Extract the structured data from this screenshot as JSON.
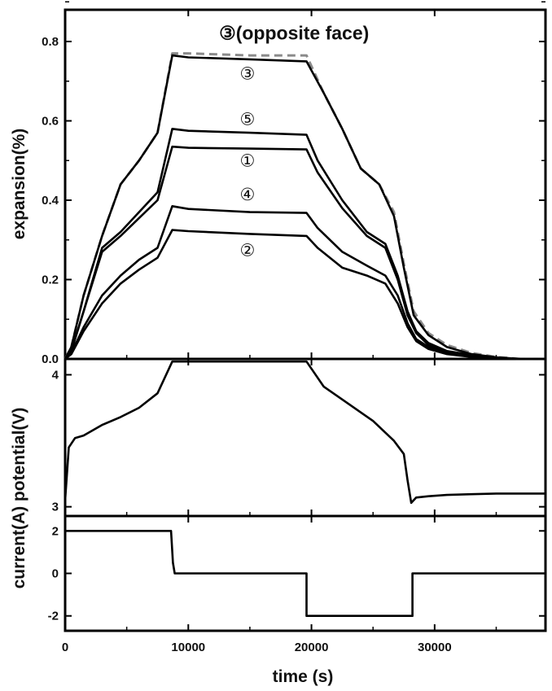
{
  "chart_data": {
    "type": "line",
    "xlabel": "time (s)",
    "x_ticks": [
      "0",
      "10000",
      "20000",
      "30000"
    ],
    "xlim": [
      0,
      39000
    ],
    "panels": [
      {
        "id": "expansion",
        "ylabel": "expansion(%)",
        "ylim": [
          0,
          0.88
        ],
        "y_ticks": [
          "0.0",
          "0.2",
          "0.4",
          "0.6",
          "0.8"
        ],
        "annotations": [
          {
            "text": "③(opposite face)",
            "x": 12500,
            "y": 0.805
          },
          {
            "text": "③",
            "x": 14800,
            "y": 0.705
          },
          {
            "text": "⑤",
            "x": 14800,
            "y": 0.59
          },
          {
            "text": "①",
            "x": 14800,
            "y": 0.485
          },
          {
            "text": "④",
            "x": 14800,
            "y": 0.4
          },
          {
            "text": "②",
            "x": 14800,
            "y": 0.26
          }
        ],
        "series": [
          {
            "name": "③(opposite face)",
            "color": "#8a8a8a",
            "dashed": true,
            "x": [
              0,
              500,
              1500,
              3000,
              4500,
              6000,
              7500,
              8700,
              10000,
              15000,
              19600,
              21000,
              22500,
              24000,
              25500,
              26700,
              27500,
              28300,
              29500,
              31000,
              33000,
              35000,
              37000,
              39000
            ],
            "y": [
              0,
              0.03,
              0.16,
              0.31,
              0.44,
              0.5,
              0.57,
              0.77,
              0.77,
              0.765,
              0.765,
              0.67,
              0.58,
              0.48,
              0.44,
              0.37,
              0.24,
              0.12,
              0.065,
              0.035,
              0.015,
              0.005,
              0,
              0
            ]
          },
          {
            "name": "③",
            "color": "#000000",
            "dashed": false,
            "x": [
              0,
              500,
              1500,
              3000,
              4500,
              6000,
              7500,
              8700,
              10000,
              15000,
              19600,
              21000,
              22500,
              24000,
              25500,
              26700,
              27500,
              28300,
              29500,
              31000,
              33000,
              35000,
              37000,
              39000
            ],
            "y": [
              0,
              0.03,
              0.16,
              0.31,
              0.44,
              0.5,
              0.57,
              0.765,
              0.76,
              0.755,
              0.75,
              0.67,
              0.58,
              0.48,
              0.44,
              0.36,
              0.23,
              0.11,
              0.06,
              0.03,
              0.012,
              0.004,
              0,
              0
            ]
          },
          {
            "name": "⑤",
            "color": "#000000",
            "dashed": false,
            "x": [
              0,
              500,
              1500,
              3000,
              4500,
              6000,
              7500,
              8700,
              10000,
              15000,
              19600,
              20500,
              22500,
              24500,
              26000,
              27000,
              27800,
              28500,
              29500,
              31000,
              33000,
              35000,
              37000,
              39000
            ],
            "y": [
              0,
              0.02,
              0.12,
              0.28,
              0.32,
              0.37,
              0.42,
              0.58,
              0.575,
              0.57,
              0.565,
              0.5,
              0.4,
              0.32,
              0.29,
              0.21,
              0.12,
              0.07,
              0.04,
              0.02,
              0.01,
              0.003,
              0,
              0
            ]
          },
          {
            "name": "①",
            "color": "#000000",
            "dashed": false,
            "x": [
              0,
              500,
              1500,
              3000,
              4500,
              6000,
              7500,
              8700,
              10000,
              15000,
              19600,
              20500,
              22500,
              24500,
              26000,
              27000,
              27800,
              28500,
              29500,
              31000,
              33000,
              35000,
              37000,
              39000
            ],
            "y": [
              0,
              0.02,
              0.12,
              0.27,
              0.31,
              0.355,
              0.4,
              0.535,
              0.532,
              0.53,
              0.528,
              0.47,
              0.38,
              0.31,
              0.28,
              0.2,
              0.11,
              0.065,
              0.035,
              0.018,
              0.008,
              0.002,
              0,
              0
            ]
          },
          {
            "name": "④",
            "color": "#000000",
            "dashed": false,
            "x": [
              0,
              500,
              1500,
              3000,
              4500,
              6000,
              7500,
              8700,
              10000,
              15000,
              19600,
              20500,
              22500,
              24500,
              26000,
              27000,
              27800,
              28500,
              29500,
              31000,
              33000,
              35000,
              37000,
              39000
            ],
            "y": [
              0,
              0.015,
              0.08,
              0.16,
              0.21,
              0.25,
              0.28,
              0.385,
              0.378,
              0.37,
              0.368,
              0.33,
              0.27,
              0.235,
              0.21,
              0.16,
              0.09,
              0.05,
              0.03,
              0.015,
              0.006,
              0.002,
              0,
              0
            ]
          },
          {
            "name": "②",
            "color": "#000000",
            "dashed": false,
            "x": [
              0,
              500,
              1500,
              3000,
              4500,
              6000,
              7500,
              8700,
              10000,
              15000,
              19600,
              20500,
              22500,
              24500,
              26000,
              27000,
              27800,
              28500,
              29500,
              31000,
              33000,
              35000,
              37000,
              39000
            ],
            "y": [
              0,
              0.012,
              0.07,
              0.14,
              0.19,
              0.225,
              0.255,
              0.325,
              0.322,
              0.315,
              0.31,
              0.28,
              0.23,
              0.21,
              0.19,
              0.14,
              0.08,
              0.045,
              0.025,
              0.012,
              0.005,
              0.001,
              0,
              0
            ]
          }
        ]
      },
      {
        "id": "potential",
        "ylabel": "potential(V)",
        "ylim": [
          2.93,
          4.12
        ],
        "y_ticks": [
          "3",
          "4"
        ],
        "y_tick_values": [
          3,
          4
        ],
        "series": [
          {
            "name": "",
            "color": "#000000",
            "dashed": false,
            "x": [
              0,
              300,
              800,
              1500,
              3000,
              4500,
              6000,
              7500,
              8700,
              10000,
              15000,
              19600,
              21000,
              23000,
              25000,
              26700,
              27500,
              27800,
              28100,
              28500,
              29500,
              31000,
              33000,
              35000,
              37000,
              39000
            ],
            "y": [
              3.05,
              3.45,
              3.52,
              3.54,
              3.62,
              3.68,
              3.75,
              3.86,
              4.1,
              4.1,
              4.1,
              4.1,
              3.91,
              3.78,
              3.65,
              3.5,
              3.4,
              3.2,
              3.03,
              3.07,
              3.08,
              3.09,
              3.095,
              3.1,
              3.1,
              3.1
            ]
          }
        ]
      },
      {
        "id": "current",
        "ylabel": "current(A)",
        "ylim": [
          -2.7,
          2.7
        ],
        "y_ticks": [
          "2",
          "0",
          "-2"
        ],
        "y_tick_values": [
          2,
          0,
          -2
        ],
        "series": [
          {
            "name": "",
            "color": "#000000",
            "dashed": false,
            "x": [
              0,
              8600,
              8750,
              8900,
              19600,
              19600,
              28200,
              28200,
              39000
            ],
            "y": [
              2,
              2,
              0.5,
              0,
              0,
              -2,
              -2,
              0,
              0
            ]
          }
        ]
      }
    ],
    "combined_ylabel": "current(A)  potential(V)"
  }
}
